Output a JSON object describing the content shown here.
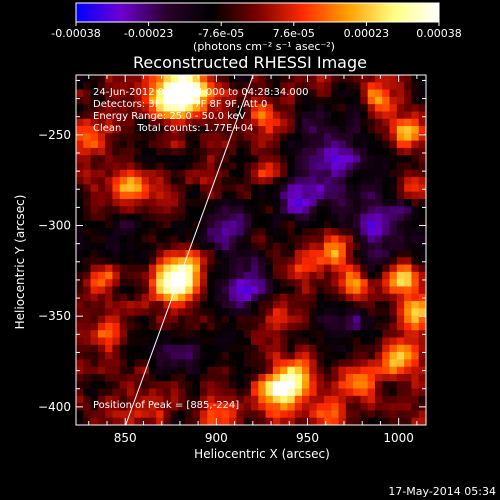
{
  "colorbar": {
    "tick_labels": [
      "-0.00038",
      "-0.00023",
      "-7.6e-05",
      "7.6e-05",
      "0.00023",
      "0.00038"
    ],
    "unit_label": "(photons cm⁻² s⁻¹ asec⁻²)",
    "range": [
      -0.00038,
      0.00038
    ],
    "colormap": [
      "#0000ff",
      "#6e00d2",
      "#2a002a",
      "#000000",
      "#7a0000",
      "#ff2a00",
      "#ffa000",
      "#ffff80",
      "#ffffff"
    ]
  },
  "annotations": {
    "time_range": "24-Jun-2012 04:26:34.000 to 04:28:34.000",
    "detectors": "Detectors: 3F 5F 6F 7F 8F 9F, Att 0",
    "energy_range": "Energy Range: 25.0 - 50.0 keV",
    "method_counts": "Clean     Total counts: 1.77E+04",
    "peak_position": "Position of Peak = [885,-224]"
  },
  "footer": {
    "date": "17-May-2014 05:34"
  },
  "chart_data": {
    "type": "heatmap",
    "title": "Reconstructed RHESSI Image",
    "xlabel": "Heliocentric X (arcsec)",
    "ylabel": "Heliocentric Y (arcsec)",
    "xlim": [
      823,
      1015
    ],
    "ylim": [
      -410,
      -217
    ],
    "x_ticks": [
      850,
      900,
      950,
      1000
    ],
    "y_ticks": [
      -250,
      -300,
      -350,
      -400
    ],
    "grid": false,
    "limb_line": [
      [
        843,
        -430
      ],
      [
        922,
        -212
      ]
    ],
    "hot_spots": [
      {
        "x": 885,
        "y": -224,
        "v": 1.0,
        "r": 9
      },
      {
        "x": 874,
        "y": -230,
        "v": 0.85,
        "r": 8
      },
      {
        "x": 882,
        "y": -325,
        "v": 0.95,
        "r": 8
      },
      {
        "x": 875,
        "y": -333,
        "v": 0.6,
        "r": 8
      },
      {
        "x": 852,
        "y": -278,
        "v": 0.8,
        "r": 6
      },
      {
        "x": 830,
        "y": -252,
        "v": 0.55,
        "r": 8
      },
      {
        "x": 838,
        "y": -330,
        "v": 0.55,
        "r": 6
      },
      {
        "x": 840,
        "y": -360,
        "v": 0.5,
        "r": 6
      },
      {
        "x": 935,
        "y": -392,
        "v": 0.95,
        "r": 8
      },
      {
        "x": 945,
        "y": -382,
        "v": 0.6,
        "r": 8
      },
      {
        "x": 965,
        "y": -312,
        "v": 0.65,
        "r": 7
      },
      {
        "x": 975,
        "y": -332,
        "v": 0.6,
        "r": 6
      },
      {
        "x": 1003,
        "y": -330,
        "v": 0.85,
        "r": 6
      },
      {
        "x": 1010,
        "y": -350,
        "v": 0.8,
        "r": 6
      },
      {
        "x": 1000,
        "y": -372,
        "v": 0.8,
        "r": 7
      },
      {
        "x": 978,
        "y": -385,
        "v": 0.6,
        "r": 7
      },
      {
        "x": 1005,
        "y": -250,
        "v": 0.65,
        "r": 6
      },
      {
        "x": 990,
        "y": -230,
        "v": 0.55,
        "r": 6
      },
      {
        "x": 1010,
        "y": -280,
        "v": 0.5,
        "r": 6
      },
      {
        "x": 935,
        "y": -345,
        "v": 0.5,
        "r": 6
      },
      {
        "x": 948,
        "y": -322,
        "v": 0.45,
        "r": 6
      },
      {
        "x": 905,
        "y": -405,
        "v": 0.5,
        "r": 7
      },
      {
        "x": 960,
        "y": -405,
        "v": 0.55,
        "r": 6
      },
      {
        "x": 925,
        "y": -240,
        "v": 0.45,
        "r": 6
      },
      {
        "x": 930,
        "y": -268,
        "v": 0.45,
        "r": 6
      },
      {
        "x": 860,
        "y": -400,
        "v": 0.4,
        "r": 7
      }
    ],
    "cold_spots": [
      {
        "x": 962,
        "y": -262,
        "v": -0.65,
        "r": 14
      },
      {
        "x": 945,
        "y": -285,
        "v": -0.5,
        "r": 10
      },
      {
        "x": 990,
        "y": -300,
        "v": -0.6,
        "r": 14
      },
      {
        "x": 915,
        "y": -335,
        "v": -0.5,
        "r": 12
      },
      {
        "x": 905,
        "y": -300,
        "v": -0.45,
        "r": 10
      },
      {
        "x": 850,
        "y": -310,
        "v": -0.35,
        "r": 10
      },
      {
        "x": 880,
        "y": -370,
        "v": -0.35,
        "r": 10
      },
      {
        "x": 970,
        "y": -355,
        "v": -0.4,
        "r": 10
      }
    ]
  }
}
